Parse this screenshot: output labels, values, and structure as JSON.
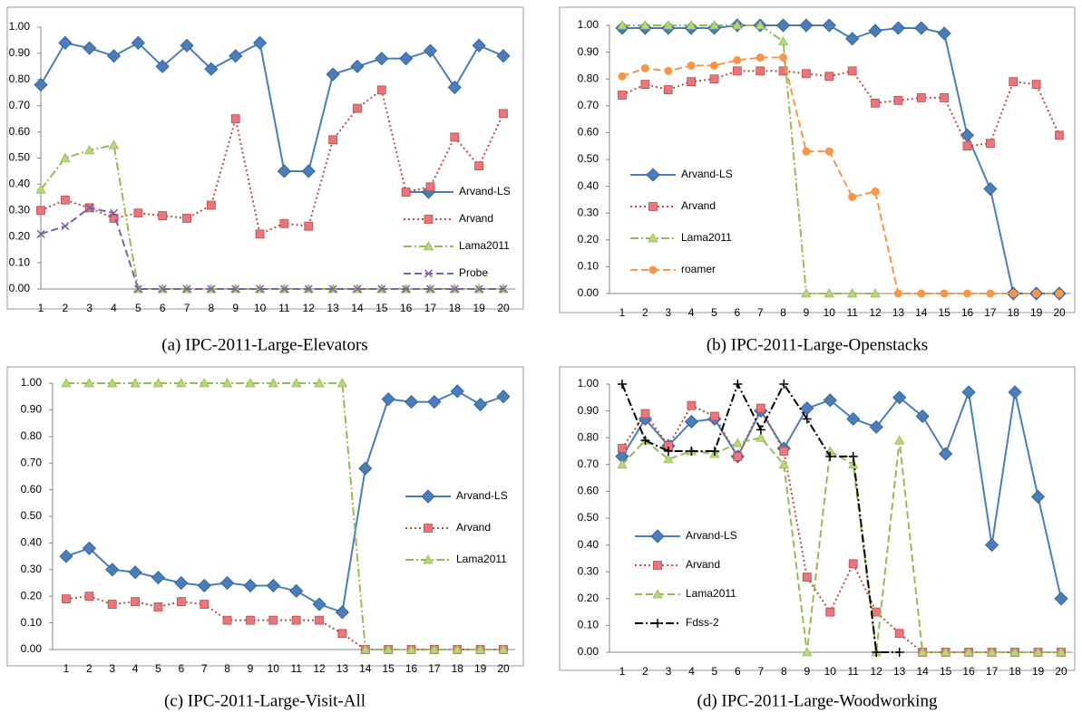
{
  "chart_data": [
    {
      "type": "line",
      "caption": "(a) IPC-2011-Large-Elevators",
      "categories": [
        "1",
        "2",
        "3",
        "4",
        "5",
        "6",
        "7",
        "8",
        "9",
        "10",
        "11",
        "12",
        "13",
        "14",
        "15",
        "16",
        "17",
        "18",
        "19",
        "20"
      ],
      "ylim": [
        0,
        1
      ],
      "yticks": [
        {
          "value": 0,
          "label": "0.00"
        },
        {
          "value": 0.1,
          "label": "0.10"
        },
        {
          "value": 0.2,
          "label": "0.20"
        },
        {
          "value": 0.3,
          "label": "0.30"
        },
        {
          "value": 0.4,
          "label": "0.40"
        },
        {
          "value": 0.5,
          "label": "0.50"
        },
        {
          "value": 0.6,
          "label": "0.60"
        },
        {
          "value": 0.7,
          "label": "0.70"
        },
        {
          "value": 0.8,
          "label": "0.80"
        },
        {
          "value": 0.9,
          "label": "0.90"
        },
        {
          "value": 1,
          "label": "1.00"
        }
      ],
      "series": [
        {
          "name": "Arvand-LS",
          "color": "#4a7ebb",
          "dash": "solid",
          "marker": "diamond",
          "values": [
            0.78,
            0.94,
            0.92,
            0.89,
            0.94,
            0.85,
            0.93,
            0.84,
            0.89,
            0.94,
            0.45,
            0.45,
            0.82,
            0.85,
            0.88,
            0.88,
            0.91,
            0.77,
            0.93,
            0.89
          ]
        },
        {
          "name": "Arvand",
          "color": "#be4b48",
          "dash": "dotted",
          "marker": "square",
          "values": [
            0.3,
            0.34,
            0.31,
            0.27,
            0.29,
            0.28,
            0.27,
            0.32,
            0.65,
            0.21,
            0.25,
            0.24,
            0.57,
            0.69,
            0.76,
            0.37,
            0.39,
            0.58,
            0.47,
            0.67
          ]
        },
        {
          "name": "Lama2011",
          "color": "#98b954",
          "dash": "dash-dot",
          "marker": "triangle",
          "values": [
            0.38,
            0.5,
            0.53,
            0.55,
            0,
            0,
            0,
            0,
            0,
            0,
            0,
            0,
            0,
            0,
            0,
            0,
            0,
            0,
            0,
            0
          ]
        },
        {
          "name": "Probe",
          "color": "#7d60a0",
          "dash": "dashed",
          "marker": "x",
          "values": [
            0.21,
            0.24,
            0.31,
            0.29,
            0,
            0,
            0,
            0,
            0,
            0,
            0,
            0,
            0,
            0,
            0,
            0,
            0,
            0,
            0,
            0
          ]
        }
      ]
    },
    {
      "type": "line",
      "caption": "(b) IPC-2011-Large-Openstacks",
      "categories": [
        "1",
        "2",
        "3",
        "4",
        "5",
        "6",
        "7",
        "8",
        "9",
        "10",
        "11",
        "12",
        "13",
        "14",
        "15",
        "16",
        "17",
        "18",
        "19",
        "20"
      ],
      "ylim": [
        0,
        1
      ],
      "yticks": [
        {
          "value": 0,
          "label": "0.00"
        },
        {
          "value": 0.1,
          "label": "0.10"
        },
        {
          "value": 0.2,
          "label": "0.20"
        },
        {
          "value": 0.3,
          "label": "0.30"
        },
        {
          "value": 0.4,
          "label": "0.40"
        },
        {
          "value": 0.5,
          "label": "0.50"
        },
        {
          "value": 0.6,
          "label": "0.60"
        },
        {
          "value": 0.7,
          "label": "0.70"
        },
        {
          "value": 0.8,
          "label": "0.80"
        },
        {
          "value": 0.9,
          "label": "0.90"
        },
        {
          "value": 1,
          "label": "1.00"
        }
      ],
      "series": [
        {
          "name": "Arvand-LS",
          "color": "#4a7ebb",
          "dash": "solid",
          "marker": "diamond",
          "values": [
            0.99,
            0.99,
            0.99,
            0.99,
            0.99,
            1.0,
            1.0,
            1.0,
            1.0,
            1.0,
            0.95,
            0.98,
            0.99,
            0.99,
            0.97,
            0.59,
            0.39,
            0,
            0,
            0
          ]
        },
        {
          "name": "Arvand",
          "color": "#be4b48",
          "dash": "dotted",
          "marker": "square",
          "values": [
            0.74,
            0.78,
            0.76,
            0.79,
            0.8,
            0.83,
            0.83,
            0.83,
            0.82,
            0.81,
            0.83,
            0.71,
            0.72,
            0.73,
            0.73,
            0.55,
            0.56,
            0.79,
            0.78,
            0.59
          ]
        },
        {
          "name": "Lama2011",
          "color": "#98b954",
          "dash": "dash-dot",
          "marker": "triangle",
          "values": [
            1.0,
            1.0,
            1.0,
            1.0,
            1.0,
            1.0,
            1.0,
            0.94,
            0,
            0,
            0,
            0,
            null,
            null,
            null,
            null,
            null,
            null,
            null,
            null
          ]
        },
        {
          "name": "roamer",
          "color": "#f79646",
          "dash": "dashed",
          "marker": "circle",
          "values": [
            0.81,
            0.84,
            0.83,
            0.85,
            0.85,
            0.87,
            0.88,
            0.88,
            0.53,
            0.53,
            0.36,
            0.38,
            0,
            0,
            0,
            0,
            0,
            0,
            0,
            0
          ]
        }
      ]
    },
    {
      "type": "line",
      "caption": "(c) IPC-2011-Large-Visit-All",
      "categories": [
        "1",
        "2",
        "3",
        "4",
        "5",
        "6",
        "7",
        "8",
        "9",
        "10",
        "11",
        "12",
        "13",
        "14",
        "15",
        "16",
        "17",
        "18",
        "19",
        "20"
      ],
      "ylim": [
        0,
        1
      ],
      "yticks": [
        {
          "value": 0,
          "label": "0.00"
        },
        {
          "value": 0.1,
          "label": "0.10"
        },
        {
          "value": 0.2,
          "label": "0.20"
        },
        {
          "value": 0.3,
          "label": "0.30"
        },
        {
          "value": 0.4,
          "label": "0.40"
        },
        {
          "value": 0.5,
          "label": "0.50"
        },
        {
          "value": 0.6,
          "label": "0.60"
        },
        {
          "value": 0.7,
          "label": "0.70"
        },
        {
          "value": 0.8,
          "label": "0.80"
        },
        {
          "value": 0.9,
          "label": "0.90"
        },
        {
          "value": 1,
          "label": "1.00"
        }
      ],
      "series": [
        {
          "name": "Arvand-LS",
          "color": "#4a7ebb",
          "dash": "solid",
          "marker": "diamond",
          "values": [
            0.35,
            0.38,
            0.3,
            0.29,
            0.27,
            0.25,
            0.24,
            0.25,
            0.24,
            0.24,
            0.22,
            0.17,
            0.14,
            0.68,
            0.94,
            0.93,
            0.93,
            0.97,
            0.92,
            0.95
          ]
        },
        {
          "name": "Arvand",
          "color": "#be4b48",
          "dash": "dotted",
          "marker": "square",
          "values": [
            0.19,
            0.2,
            0.17,
            0.18,
            0.16,
            0.18,
            0.17,
            0.11,
            0.11,
            0.11,
            0.11,
            0.11,
            0.06,
            0,
            0,
            0,
            0,
            0,
            0,
            0
          ]
        },
        {
          "name": "Lama2011",
          "color": "#98b954",
          "dash": "dash-dot",
          "marker": "triangle",
          "values": [
            1,
            1,
            1,
            1,
            1,
            1,
            1,
            1,
            1,
            1,
            1,
            1,
            1,
            0,
            0,
            0,
            0,
            0,
            0,
            0
          ]
        }
      ]
    },
    {
      "type": "line",
      "caption": "(d) IPC-2011-Large-Woodworking",
      "categories": [
        "1",
        "2",
        "3",
        "4",
        "5",
        "6",
        "7",
        "8",
        "9",
        "10",
        "11",
        "12",
        "13",
        "14",
        "15",
        "16",
        "17",
        "18",
        "19",
        "20"
      ],
      "ylim": [
        0,
        1
      ],
      "yticks": [
        {
          "value": 0,
          "label": "0.00"
        },
        {
          "value": 0.1,
          "label": "0.10"
        },
        {
          "value": 0.2,
          "label": "0.20"
        },
        {
          "value": 0.3,
          "label": "0.30"
        },
        {
          "value": 0.4,
          "label": "0.40"
        },
        {
          "value": 0.5,
          "label": "0.50"
        },
        {
          "value": 0.6,
          "label": "0.60"
        },
        {
          "value": 0.7,
          "label": "0.70"
        },
        {
          "value": 0.8,
          "label": "0.80"
        },
        {
          "value": 0.9,
          "label": "0.90"
        },
        {
          "value": 1,
          "label": "1.00"
        }
      ],
      "series": [
        {
          "name": "Arvand-LS",
          "color": "#4a7ebb",
          "dash": "solid",
          "marker": "diamond",
          "values": [
            0.73,
            0.87,
            0.77,
            0.86,
            0.87,
            0.73,
            0.9,
            0.76,
            0.91,
            0.94,
            0.87,
            0.84,
            0.95,
            0.88,
            0.74,
            0.97,
            0.4,
            0.97,
            0.58,
            0.2
          ]
        },
        {
          "name": "Arvand",
          "color": "#be4b48",
          "dash": "dotted",
          "marker": "square",
          "values": [
            0.76,
            0.89,
            0.77,
            0.92,
            0.88,
            0.73,
            0.91,
            0.75,
            0.28,
            0.15,
            0.33,
            0.15,
            0.07,
            0,
            0,
            0,
            0,
            0,
            0,
            0
          ]
        },
        {
          "name": "Lama2011",
          "color": "#98b954",
          "dash": "dashed",
          "marker": "triangle",
          "values": [
            0.7,
            0.79,
            0.72,
            0.75,
            0.74,
            0.78,
            0.8,
            0.7,
            0,
            0.75,
            0.7,
            0,
            0.79,
            0,
            0,
            0,
            0,
            0,
            0,
            0
          ]
        },
        {
          "name": "Fdss-2",
          "color": "#000000",
          "dash": "dash-dot",
          "marker": "plus",
          "values": [
            1.0,
            0.79,
            0.75,
            0.75,
            0.75,
            1.0,
            0.83,
            1.0,
            0.87,
            0.73,
            0.73,
            0,
            0,
            null,
            null,
            null,
            null,
            null,
            null,
            null
          ]
        }
      ]
    }
  ]
}
